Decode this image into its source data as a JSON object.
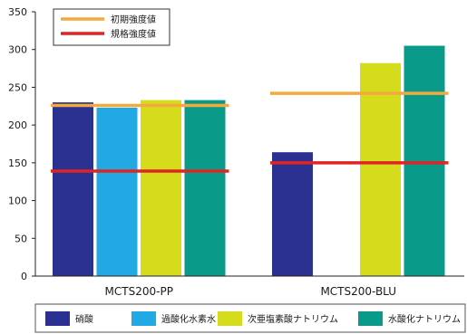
{
  "chart_data": {
    "type": "bar",
    "title": "",
    "xlabel": "",
    "ylabel": "",
    "ylim": [
      0,
      350
    ],
    "yticks": [
      0,
      50,
      100,
      150,
      200,
      250,
      300,
      350
    ],
    "categories": [
      "MCTS200-PP",
      "MCTS200-BLU"
    ],
    "series": [
      {
        "name": "硝酸",
        "color": "#2b3190",
        "values": [
          230,
          164
        ]
      },
      {
        "name": "過酸化水素水",
        "color": "#22a8e2",
        "values": [
          223,
          null
        ]
      },
      {
        "name": "次亜塩素酸ナトリウム",
        "color": "#d4dc1c",
        "values": [
          233,
          282
        ]
      },
      {
        "name": "水酸化ナトリウム",
        "color": "#0a9a8a",
        "values": [
          233,
          305
        ]
      }
    ],
    "reference_lines": [
      {
        "name": "初期強度値",
        "color": "#f4a93d",
        "values": [
          226,
          242
        ]
      },
      {
        "name": "規格強度値",
        "color": "#e02424",
        "values": [
          139,
          150
        ]
      }
    ],
    "legend_placement": "bottom",
    "grid": false
  }
}
